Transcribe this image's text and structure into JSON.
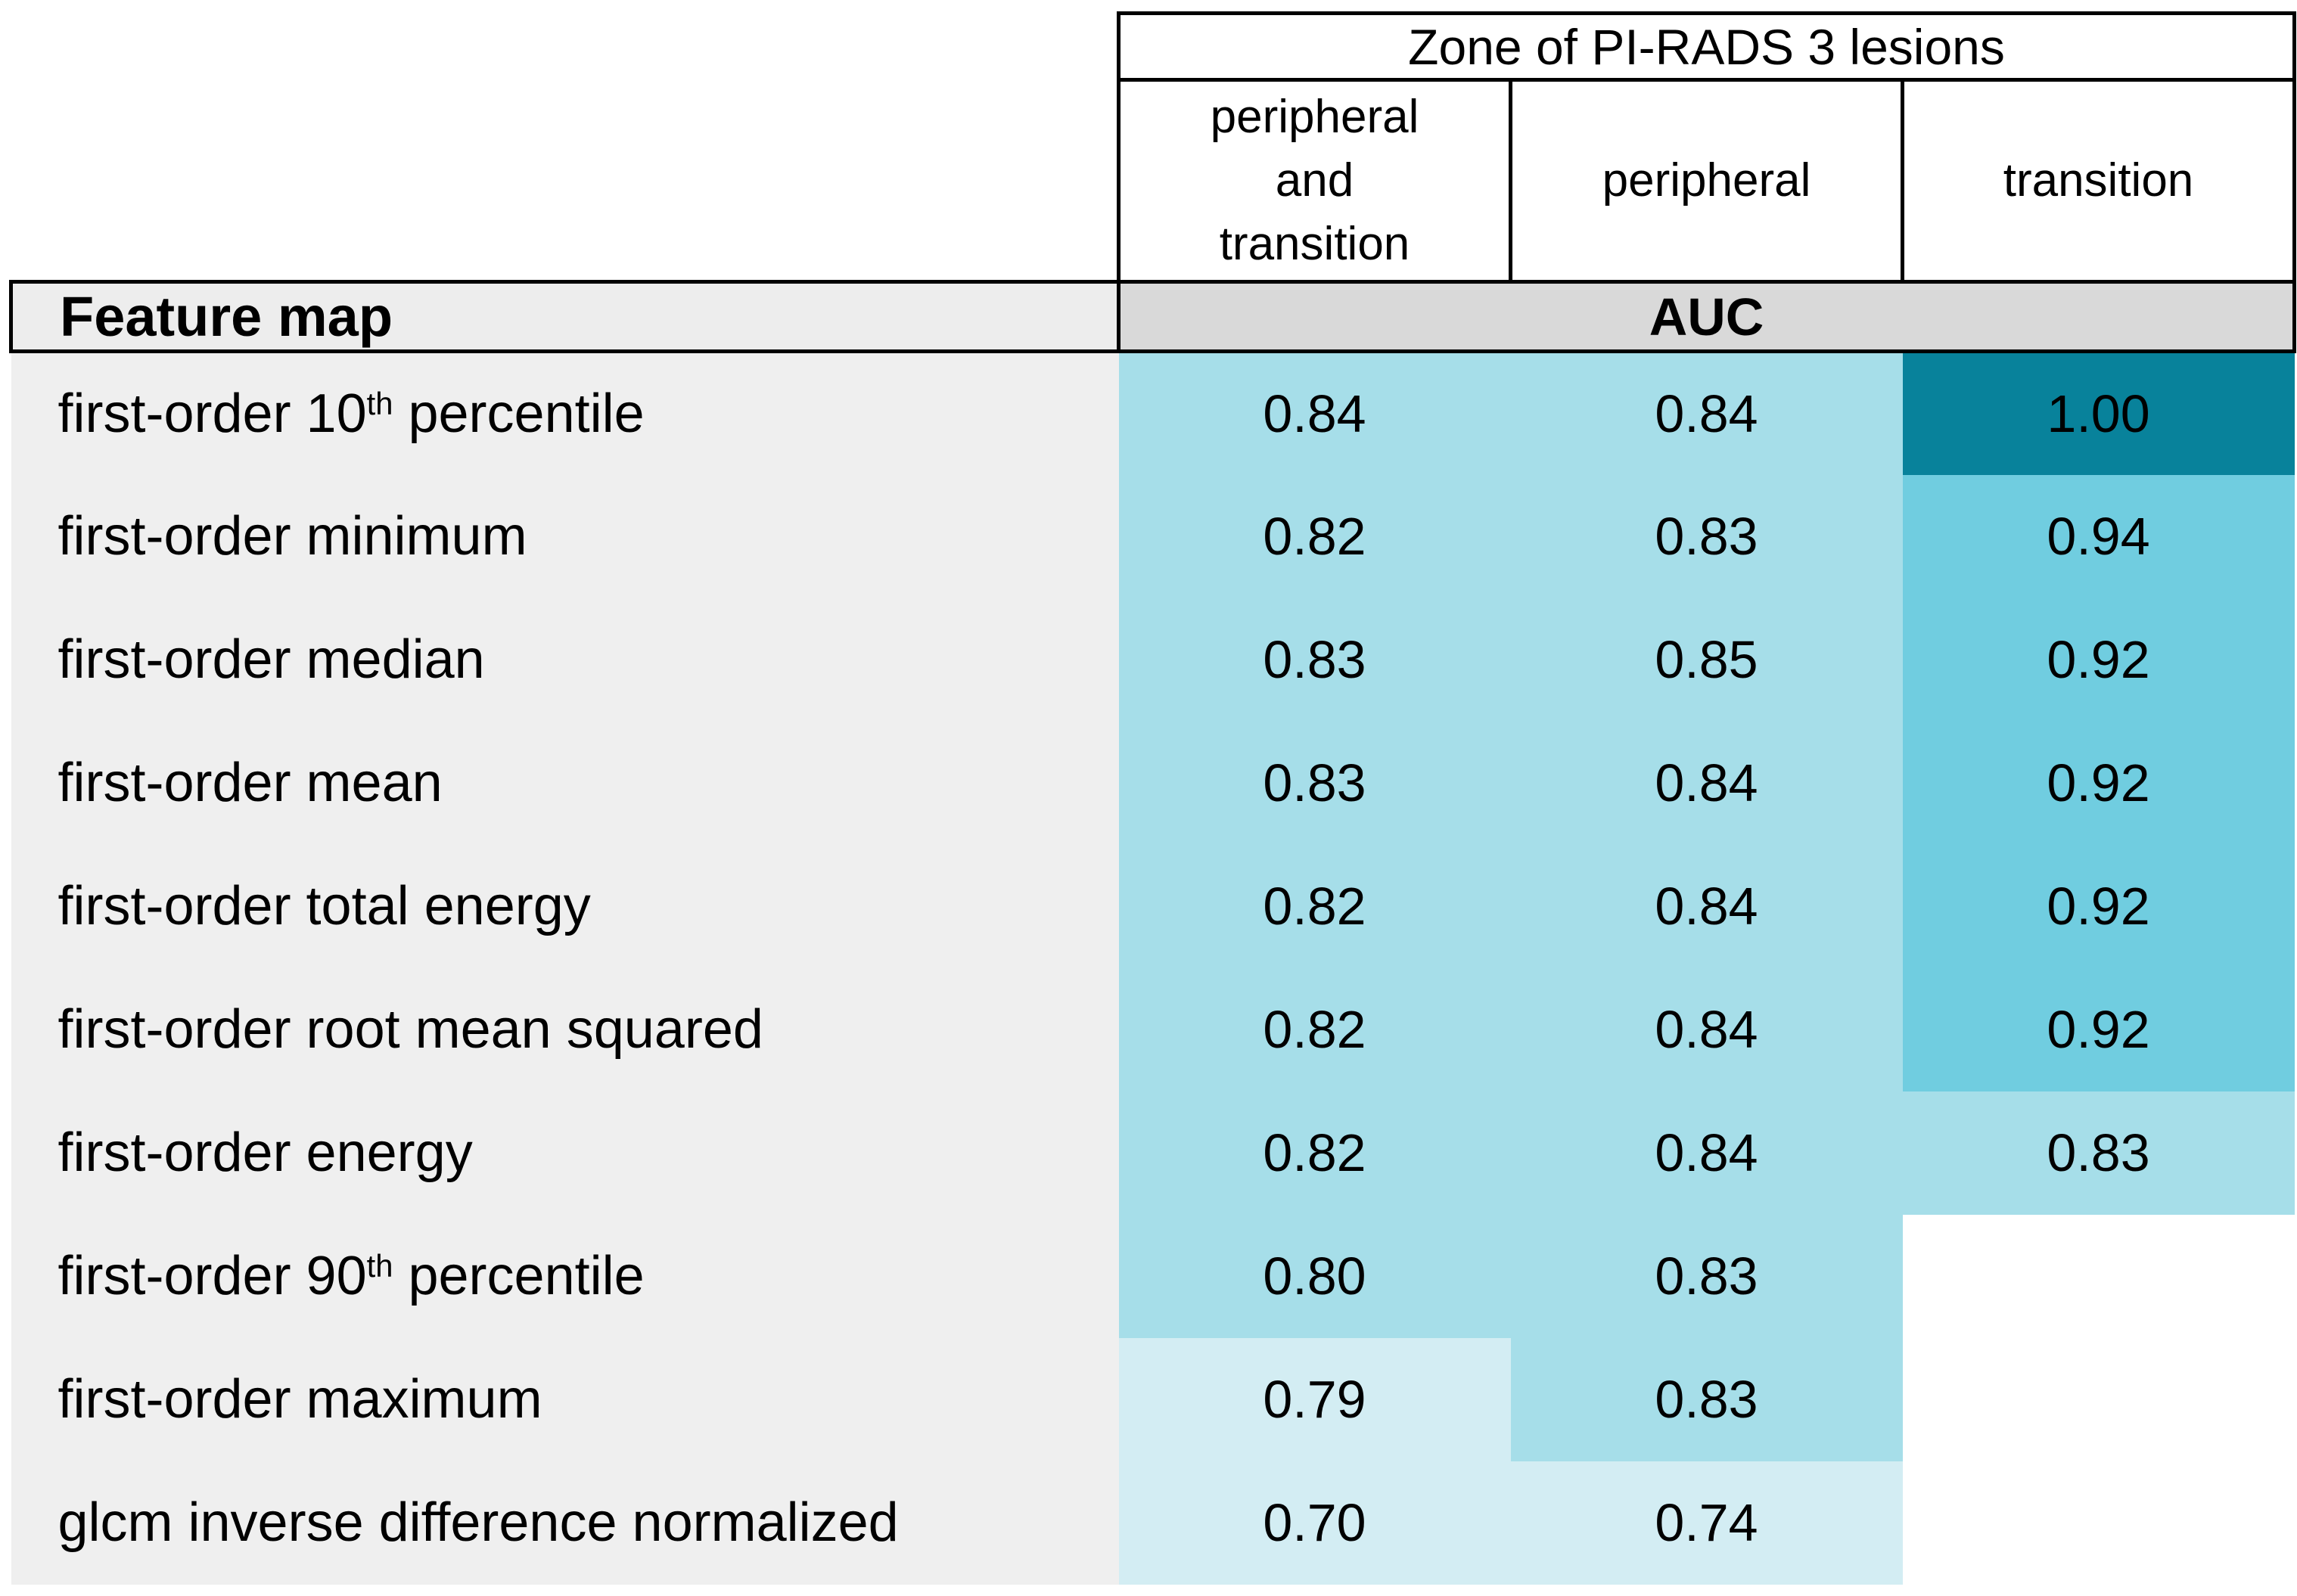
{
  "table": {
    "zone_header": "Zone of PI-RADS 3 lesions",
    "column_headers": [
      "peripheral and transition",
      "peripheral",
      "transition"
    ],
    "feature_map_label": "Feature map",
    "auc_label": "AUC",
    "rows": [
      {
        "label": {
          "pre": "first-order 10",
          "sup": "th",
          "post": " percentile"
        },
        "values": [
          "0.84",
          "0.84",
          "1.00"
        ]
      },
      {
        "label": {
          "pre": "first-order minimum",
          "sup": "",
          "post": ""
        },
        "values": [
          "0.82",
          "0.83",
          "0.94"
        ]
      },
      {
        "label": {
          "pre": "first-order median",
          "sup": "",
          "post": ""
        },
        "values": [
          "0.83",
          "0.85",
          "0.92"
        ]
      },
      {
        "label": {
          "pre": "first-order mean",
          "sup": "",
          "post": ""
        },
        "values": [
          "0.83",
          "0.84",
          "0.92"
        ]
      },
      {
        "label": {
          "pre": "first-order total energy",
          "sup": "",
          "post": ""
        },
        "values": [
          "0.82",
          "0.84",
          "0.92"
        ]
      },
      {
        "label": {
          "pre": "first-order root mean squared",
          "sup": "",
          "post": ""
        },
        "values": [
          "0.82",
          "0.84",
          "0.92"
        ]
      },
      {
        "label": {
          "pre": "first-order energy",
          "sup": "",
          "post": ""
        },
        "values": [
          "0.82",
          "0.84",
          "0.83"
        ]
      },
      {
        "label": {
          "pre": "first-order 90",
          "sup": "th",
          "post": " percentile"
        },
        "values": [
          "0.80",
          "0.83",
          null
        ]
      },
      {
        "label": {
          "pre": "first-order maximum",
          "sup": "",
          "post": ""
        },
        "values": [
          "0.79",
          "0.83",
          null
        ]
      },
      {
        "label": {
          "pre": "glcm inverse difference normalized",
          "sup": "",
          "post": ""
        },
        "values": [
          "0.70",
          "0.74",
          null
        ]
      }
    ]
  },
  "colors": {
    "heat_dark": "#08829b",
    "heat_medium": "#70cde0",
    "heat_light": "#a6dee9",
    "heat_pale": "#d3edf3",
    "blank": "#ffffff",
    "label_bg": "#efefef",
    "feature_bg": "#ededed",
    "auc_bg": "#d9d9d9",
    "border": "#000000"
  },
  "chart_data": {
    "type": "heatmap",
    "title": "Zone of PI-RADS 3 lesions",
    "row_header": "Feature map",
    "value_label": "AUC",
    "columns": [
      "peripheral and transition",
      "peripheral",
      "transition"
    ],
    "rows": [
      "first-order 10th percentile",
      "first-order minimum",
      "first-order median",
      "first-order mean",
      "first-order total energy",
      "first-order root mean squared",
      "first-order energy",
      "first-order 90th percentile",
      "first-order maximum",
      "glcm inverse difference normalized"
    ],
    "values": [
      [
        0.84,
        0.84,
        1.0
      ],
      [
        0.82,
        0.83,
        0.94
      ],
      [
        0.83,
        0.85,
        0.92
      ],
      [
        0.83,
        0.84,
        0.92
      ],
      [
        0.82,
        0.84,
        0.92
      ],
      [
        0.82,
        0.84,
        0.92
      ],
      [
        0.82,
        0.84,
        0.83
      ],
      [
        0.8,
        0.83,
        null
      ],
      [
        0.79,
        0.83,
        null
      ],
      [
        0.7,
        0.74,
        null
      ]
    ],
    "value_range": [
      0,
      1
    ],
    "color_scale": {
      "1.00": "#08829b",
      "0.90-0.94": "#70cde0",
      "0.80-0.85": "#a6dee9",
      "0.70-0.79": "#d3edf3",
      "missing": "#ffffff"
    },
    "legend_position": "none",
    "grid": false
  }
}
